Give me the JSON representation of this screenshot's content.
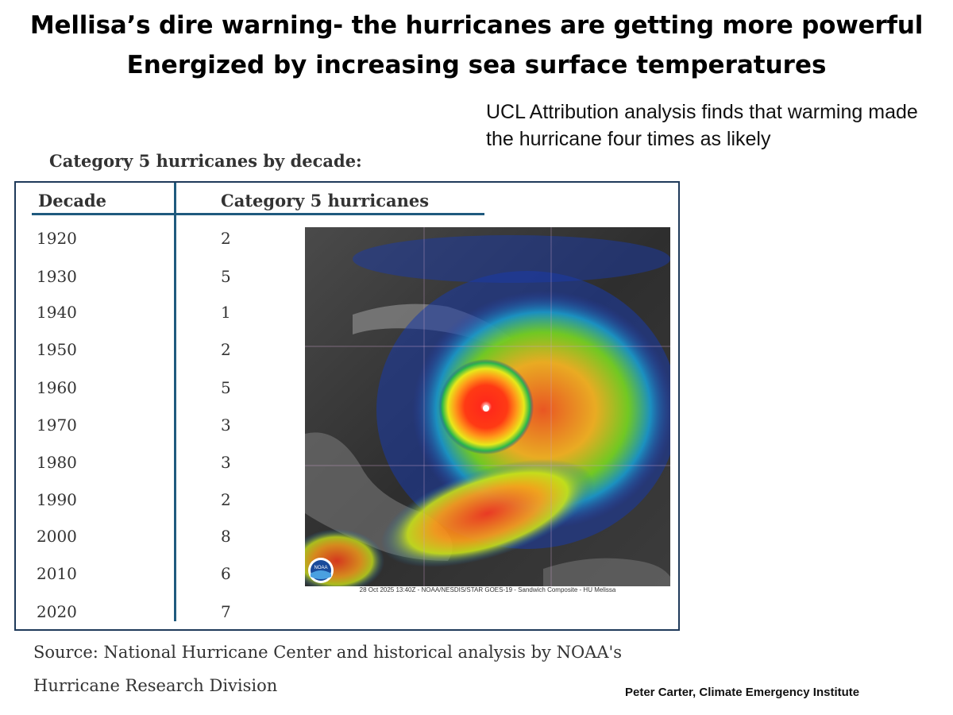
{
  "title_line1": "Mellisa’s dire warning- the hurricanes are getting more powerful",
  "title_line2": "Energized by increasing  sea surface temperatures",
  "ucl_note": "UCL Attribution analysis finds that warming made the hurricane four times as likely",
  "table": {
    "heading": "Category 5 hurricanes by decade:",
    "col_decade": "Decade",
    "col_count": "Category 5 hurricanes",
    "rows": [
      {
        "decade": "1920",
        "count": "2"
      },
      {
        "decade": "1930",
        "count": "5"
      },
      {
        "decade": "1940",
        "count": "1"
      },
      {
        "decade": "1950",
        "count": "2"
      },
      {
        "decade": "1960",
        "count": "5"
      },
      {
        "decade": "1970",
        "count": "3"
      },
      {
        "decade": "1980",
        "count": "3"
      },
      {
        "decade": "1990",
        "count": "2"
      },
      {
        "decade": "2000",
        "count": "8"
      },
      {
        "decade": "2010",
        "count": "6"
      },
      {
        "decade": "2020",
        "count": "7"
      }
    ]
  },
  "satellite": {
    "caption": "28 Oct 2025 13:40Z - NOAA/NESDIS/STAR GOES-19 - Sandwich Composite - HU Melissa",
    "logo_text": "NOAA"
  },
  "source_line1": "Source: National Hurricane Center and historical analysis by NOAA's",
  "source_line2": "Hurricane Research Division",
  "credit": "Peter Carter, Climate Emergency Institute"
}
